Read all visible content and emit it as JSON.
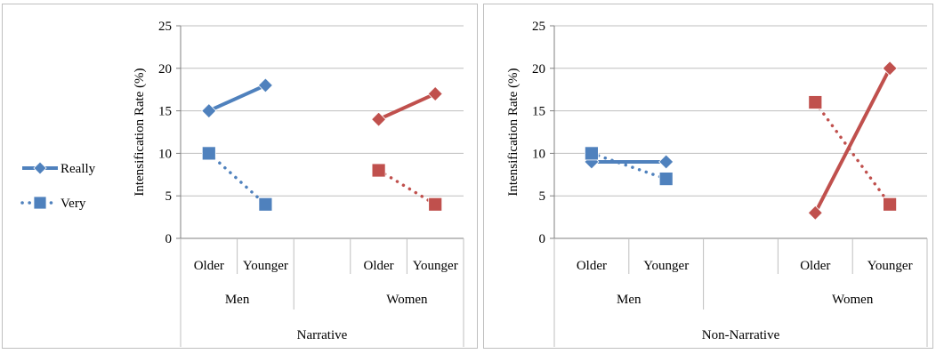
{
  "legend": {
    "entries": [
      {
        "label": "Really",
        "style": "solid",
        "marker": "diamond"
      },
      {
        "label": "Very",
        "style": "dotted",
        "marker": "square"
      }
    ]
  },
  "colors": {
    "men": "#4f81bd",
    "women": "#c0504d",
    "grid": "#bfbfbf",
    "axis": "#808080"
  },
  "chart_data": [
    {
      "type": "line",
      "group_label": "Narrative",
      "ylabel": "Intensification Rate (%)",
      "ylim": [
        0,
        25
      ],
      "yticks": [
        0,
        5,
        10,
        15,
        20,
        25
      ],
      "grid": true,
      "categories": [
        {
          "group": "Men",
          "subs": [
            "Older",
            "Younger"
          ]
        },
        {
          "group": "Women",
          "subs": [
            "Older",
            "Younger"
          ]
        }
      ],
      "series": [
        {
          "name": "Really",
          "group": "Men",
          "values": [
            15,
            18
          ]
        },
        {
          "name": "Very",
          "group": "Men",
          "values": [
            10,
            4
          ]
        },
        {
          "name": "Really",
          "group": "Women",
          "values": [
            14,
            17
          ]
        },
        {
          "name": "Very",
          "group": "Women",
          "values": [
            8,
            4
          ]
        }
      ]
    },
    {
      "type": "line",
      "group_label": "Non-Narrative",
      "ylabel": "Intensification Rate (%)",
      "ylim": [
        0,
        25
      ],
      "yticks": [
        0,
        5,
        10,
        15,
        20,
        25
      ],
      "grid": true,
      "categories": [
        {
          "group": "Men",
          "subs": [
            "Older",
            "Younger"
          ]
        },
        {
          "group": "Women",
          "subs": [
            "Older",
            "Younger"
          ]
        }
      ],
      "series": [
        {
          "name": "Really",
          "group": "Men",
          "values": [
            9,
            9
          ]
        },
        {
          "name": "Very",
          "group": "Men",
          "values": [
            10,
            7
          ]
        },
        {
          "name": "Really",
          "group": "Women",
          "values": [
            3,
            20
          ]
        },
        {
          "name": "Very",
          "group": "Women",
          "values": [
            16,
            4
          ]
        }
      ]
    }
  ]
}
